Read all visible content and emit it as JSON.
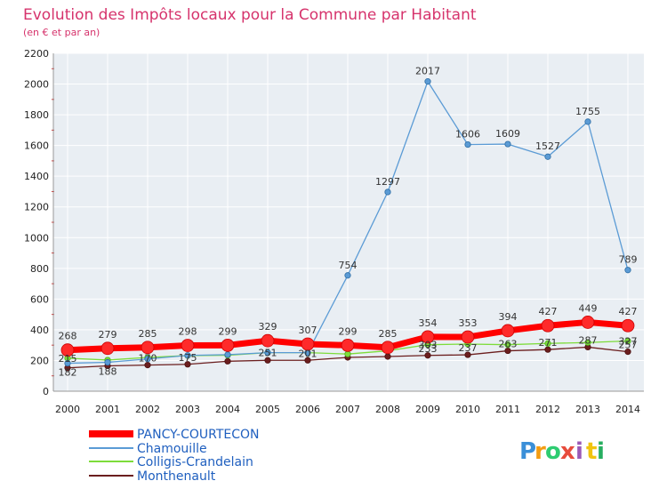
{
  "chart_data": {
    "type": "line",
    "title": "Evolution des Impôts locaux pour la Commune par Habitant",
    "subtitle": "(en € et par an)",
    "xlabel": "",
    "ylabel": "",
    "categories": [
      "2000",
      "2001",
      "2002",
      "2003",
      "2004",
      "2005",
      "2006",
      "2007",
      "2008",
      "2009",
      "2010",
      "2011",
      "2012",
      "2013",
      "2014"
    ],
    "ylim": [
      0,
      2200
    ],
    "yticks": [
      0,
      200,
      400,
      600,
      800,
      1000,
      1200,
      1400,
      1600,
      1800,
      2000,
      2200
    ],
    "grid": true,
    "legend_position": "bottom-left",
    "series": [
      {
        "name": "PANCY-COURTECON",
        "color": "#ff0000",
        "values": [
          268,
          279,
          285,
          298,
          299,
          329,
          307,
          299,
          285,
          354,
          353,
          394,
          427,
          449,
          427
        ],
        "labels": [
          "268",
          "279",
          "285",
          "298",
          "299",
          "329",
          "307",
          "299",
          "285",
          "354",
          "353",
          "394",
          "427",
          "449",
          "427"
        ]
      },
      {
        "name": "Chamouille",
        "color": "#5b9bd5",
        "values": [
          182,
          188,
          210,
          233,
          238,
          251,
          251,
          754,
          1297,
          2017,
          1606,
          1609,
          1527,
          1755,
          789
        ],
        "labels": [
          "182",
          "188",
          "",
          "",
          "",
          "",
          "",
          "754",
          "1297",
          "2017",
          "1606",
          "1609",
          "1527",
          "1755",
          "789"
        ]
      },
      {
        "name": "Colligis-Crandelain",
        "color": "#7ddc3a",
        "values": [
          215,
          203,
          220,
          232,
          234,
          251,
          251,
          242,
          263,
          303,
          307,
          303,
          311,
          317,
          327
        ],
        "labels": [
          "215",
          "",
          "",
          "",
          "",
          "251",
          "",
          "",
          "",
          "303",
          "",
          "",
          "",
          "",
          "327"
        ]
      },
      {
        "name": "Monthenault",
        "color": "#6b1e1e",
        "values": [
          152,
          165,
          170,
          175,
          195,
          201,
          201,
          220,
          226,
          233,
          237,
          263,
          271,
          287,
          257
        ],
        "labels": [
          "",
          "",
          "170",
          "175",
          "",
          "",
          "201",
          "",
          "",
          "233",
          "237",
          "263",
          "271",
          "287",
          "257"
        ]
      }
    ]
  },
  "logo": {
    "letters": [
      "P",
      "r",
      "o",
      "x",
      "i",
      "t",
      "i"
    ],
    "colors": [
      "#3a8fd8",
      "#f39c12",
      "#2ecc71",
      "#e74c3c",
      "#9b59b6",
      "#f1c40f",
      "#27ae60"
    ]
  }
}
